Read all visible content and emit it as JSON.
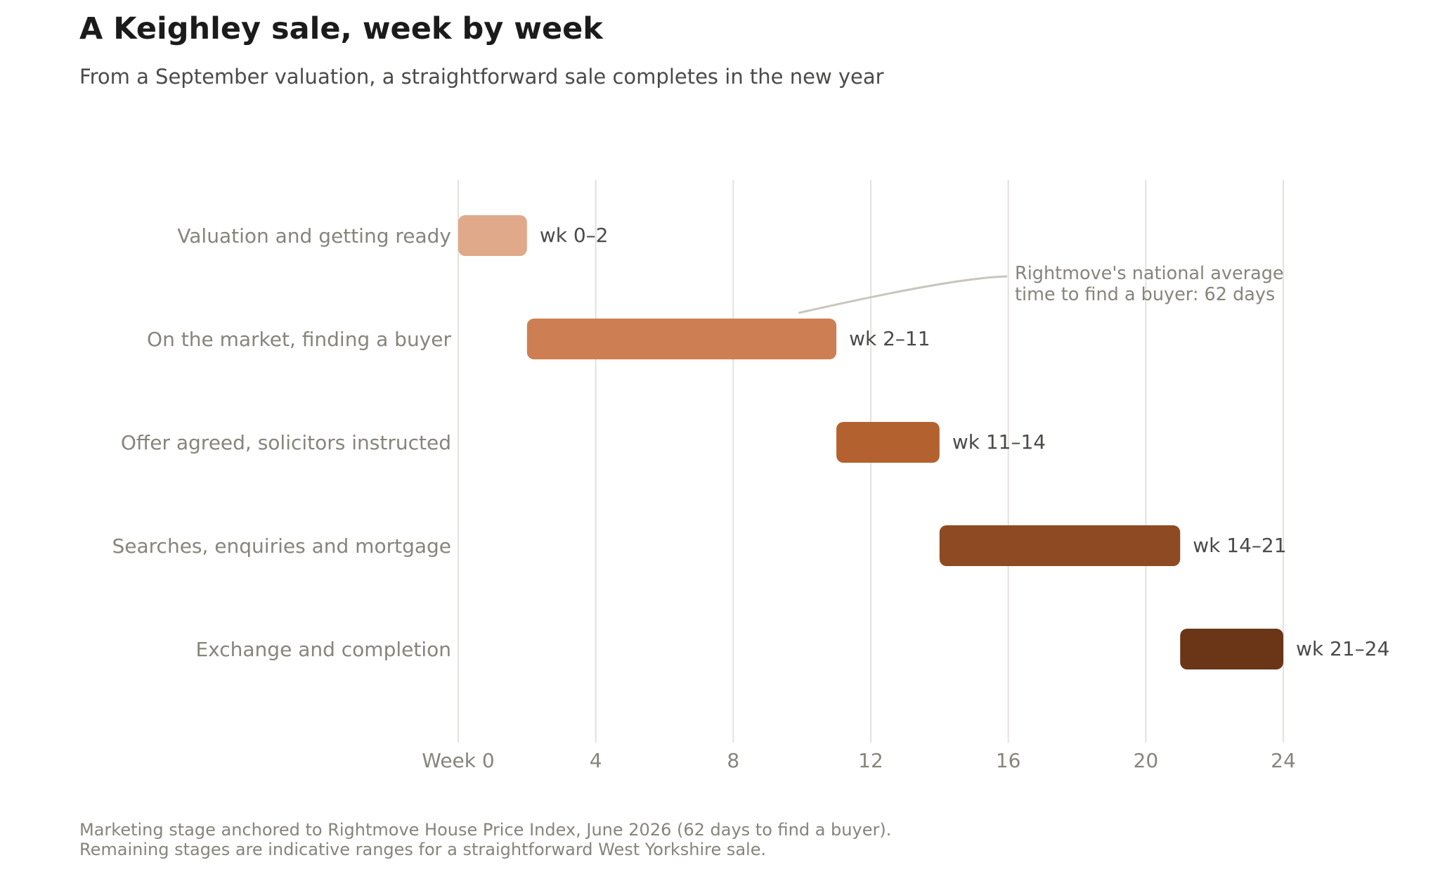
{
  "chart_data": {
    "type": "gantt",
    "title": "A Keighley sale, week by week",
    "subtitle": "From a September valuation, a straightforward sale completes in the new year",
    "x_ticks": [
      {
        "value": 0,
        "label": "Week 0"
      },
      {
        "value": 4,
        "label": "4"
      },
      {
        "value": 8,
        "label": "8"
      },
      {
        "value": 12,
        "label": "12"
      },
      {
        "value": 16,
        "label": "16"
      },
      {
        "value": 20,
        "label": "20"
      },
      {
        "value": 24,
        "label": "24"
      }
    ],
    "xlim": [
      0,
      24
    ],
    "grid": true,
    "tasks": [
      {
        "name": "Valuation and getting ready",
        "start": 0,
        "end": 2,
        "label": "wk 0–2",
        "color": "#e0a989"
      },
      {
        "name": "On the market, finding a buyer",
        "start": 2,
        "end": 11,
        "label": "wk 2–11",
        "color": "#cd7f53"
      },
      {
        "name": "Offer agreed, solicitors instructed",
        "start": 11,
        "end": 14,
        "label": "wk 11–14",
        "color": "#b3612e"
      },
      {
        "name": "Searches, enquiries and mortgage",
        "start": 14,
        "end": 21,
        "label": "wk 14–21",
        "color": "#8e4a22"
      },
      {
        "name": "Exchange and completion",
        "start": 21,
        "end": 24,
        "label": "wk 21–24",
        "color": "#6b3518"
      }
    ],
    "annotation": {
      "lines": [
        "Rightmove's national average",
        "time to find a buyer: 62 days"
      ],
      "target_task": 1,
      "target_week": 9.9
    },
    "footnote": [
      "Marketing stage anchored to Rightmove House Price Index, June 2026 (62 days to find a buyer).",
      "Remaining stages are indicative ranges for a straightforward West Yorkshire sale."
    ]
  }
}
